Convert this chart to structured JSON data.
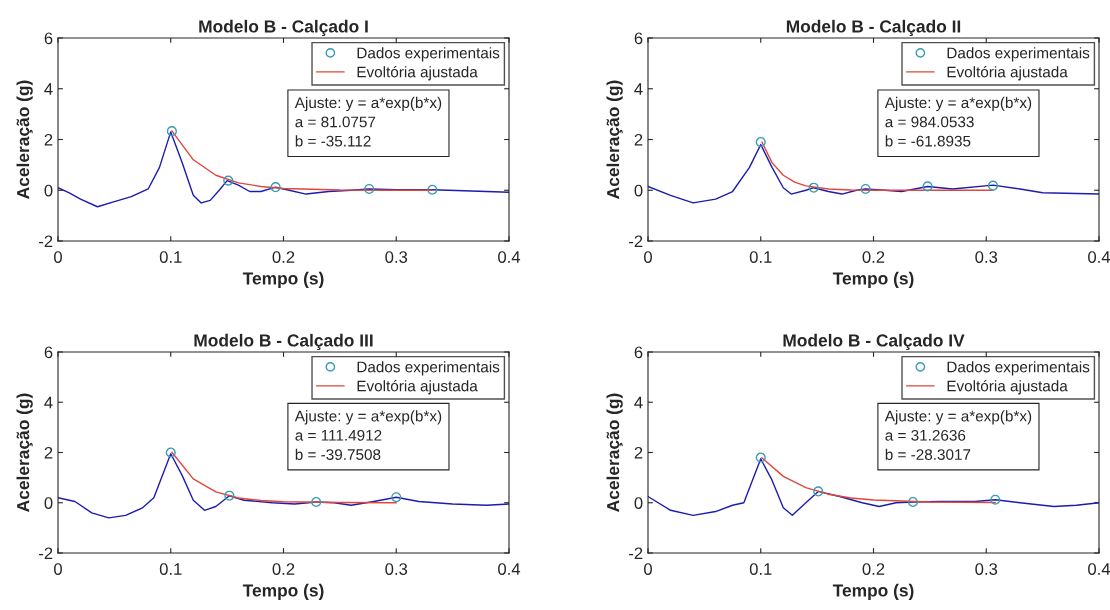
{
  "chart_data": [
    {
      "type": "line",
      "title": "Modelo B - Calçado I",
      "xlabel": "Tempo (s)",
      "ylabel": "Aceleração (g)",
      "xlim": [
        0,
        0.4
      ],
      "ylim": [
        -2,
        6
      ],
      "xticks": [
        0,
        0.1,
        0.2,
        0.3,
        0.4
      ],
      "yticks": [
        -2,
        0,
        2,
        4,
        6
      ],
      "grid": false,
      "legend": "top right",
      "annotations": [
        "Ajuste: y = a*exp(b*x)\na = 81.0757\nb = -35.112"
      ],
      "series": [
        {
          "color": "#1c1cb0",
          "line_style": "solid",
          "x": [
            0,
            0.01,
            0.02,
            0.035,
            0.05,
            0.065,
            0.08,
            0.09,
            0.1,
            0.11,
            0.12,
            0.127,
            0.135,
            0.143,
            0.15,
            0.16,
            0.17,
            0.18,
            0.193,
            0.205,
            0.22,
            0.24,
            0.26,
            0.276,
            0.3,
            0.332,
            0.36,
            0.4
          ],
          "values": [
            0.1,
            -0.1,
            -0.35,
            -0.65,
            -0.45,
            -0.25,
            0.05,
            0.9,
            2.3,
            1.1,
            -0.2,
            -0.5,
            -0.4,
            0,
            0.38,
            0.2,
            -0.05,
            -0.05,
            0.12,
            0,
            -0.15,
            -0.05,
            0,
            0.05,
            0.02,
            0.02,
            -0.02,
            -0.08
          ]
        },
        {
          "type": "scatter",
          "name": "Dados experimentais",
          "color": "#3a9bb5",
          "marker": "circle",
          "x": [
            0.101,
            0.151,
            0.193,
            0.276,
            0.332
          ],
          "values": [
            2.33,
            0.38,
            0.12,
            0.05,
            0.02
          ]
        },
        {
          "name": "Evoltória ajustada",
          "color": "#e0463a",
          "line_style": "solid",
          "x": [
            0.101,
            0.12,
            0.14,
            0.16,
            0.18,
            0.2,
            0.25,
            0.3,
            0.332
          ],
          "values": [
            2.34,
            1.2,
            0.59,
            0.29,
            0.15,
            0.07,
            0.01,
            0,
            0
          ]
        }
      ]
    },
    {
      "type": "line",
      "title": "Modelo B - Calçado II",
      "xlabel": "Tempo (s)",
      "ylabel": "Aceleração (g)",
      "xlim": [
        0,
        0.4
      ],
      "ylim": [
        -2,
        6
      ],
      "xticks": [
        0,
        0.1,
        0.2,
        0.3,
        0.4
      ],
      "yticks": [
        -2,
        0,
        2,
        4,
        6
      ],
      "grid": false,
      "legend": "top right",
      "annotations": [
        "Ajuste: y = a*exp(b*x)\na = 984.0533\nb = -61.8935"
      ],
      "series": [
        {
          "color": "#1c1cb0",
          "line_style": "solid",
          "x": [
            0,
            0.02,
            0.04,
            0.06,
            0.075,
            0.09,
            0.1,
            0.11,
            0.12,
            0.127,
            0.14,
            0.147,
            0.16,
            0.172,
            0.185,
            0.193,
            0.21,
            0.225,
            0.248,
            0.27,
            0.306,
            0.33,
            0.35,
            0.4
          ],
          "values": [
            0.15,
            -0.2,
            -0.5,
            -0.35,
            -0.05,
            0.9,
            1.8,
            0.9,
            0.1,
            -0.15,
            0,
            0.1,
            -0.05,
            -0.15,
            0,
            0.05,
            0,
            -0.05,
            0.15,
            0.05,
            0.2,
            0.05,
            -0.1,
            -0.15
          ]
        },
        {
          "type": "scatter",
          "name": "Dados experimentais",
          "color": "#3a9bb5",
          "marker": "circle",
          "x": [
            0.1,
            0.147,
            0.193,
            0.248,
            0.306
          ],
          "values": [
            1.9,
            0.1,
            0.05,
            0.15,
            0.18
          ]
        },
        {
          "name": "Evoltória ajustada",
          "color": "#e0463a",
          "line_style": "solid",
          "x": [
            0.101,
            0.11,
            0.12,
            0.13,
            0.14,
            0.16,
            0.18,
            0.2,
            0.25,
            0.306
          ],
          "values": [
            1.9,
            1.09,
            0.59,
            0.32,
            0.17,
            0.05,
            0.01,
            0,
            0,
            0
          ]
        }
      ]
    },
    {
      "type": "line",
      "title": "Modelo B - Calçado III",
      "xlabel": "Tempo (s)",
      "ylabel": "Aceleração (g)",
      "xlim": [
        0,
        0.4
      ],
      "ylim": [
        -2,
        6
      ],
      "xticks": [
        0,
        0.1,
        0.2,
        0.3,
        0.4
      ],
      "yticks": [
        -2,
        0,
        2,
        4,
        6
      ],
      "grid": false,
      "legend": "top right",
      "annotations": [
        "Ajuste: y = a*exp(b*x)\na = 111.4912\nb = -39.7508"
      ],
      "series": [
        {
          "color": "#1c1cb0",
          "line_style": "solid",
          "x": [
            0,
            0.015,
            0.03,
            0.045,
            0.06,
            0.075,
            0.085,
            0.1,
            0.11,
            0.12,
            0.13,
            0.14,
            0.152,
            0.165,
            0.19,
            0.21,
            0.229,
            0.245,
            0.26,
            0.28,
            0.3,
            0.32,
            0.35,
            0.38,
            0.4
          ],
          "values": [
            0.2,
            0.05,
            -0.4,
            -0.6,
            -0.5,
            -0.2,
            0.2,
            1.95,
            1.1,
            0.1,
            -0.3,
            -0.15,
            0.28,
            0.1,
            0,
            -0.05,
            0.03,
            0,
            -0.1,
            0.05,
            0.22,
            0.05,
            -0.05,
            -0.1,
            -0.05
          ]
        },
        {
          "type": "scatter",
          "name": "Dados experimentais",
          "color": "#3a9bb5",
          "marker": "circle",
          "x": [
            0.1,
            0.152,
            0.229,
            0.3
          ],
          "values": [
            2.0,
            0.28,
            0.03,
            0.22
          ]
        },
        {
          "name": "Evoltória ajustada",
          "color": "#e0463a",
          "line_style": "solid",
          "x": [
            0.101,
            0.12,
            0.14,
            0.16,
            0.18,
            0.2,
            0.25,
            0.3
          ],
          "values": [
            2.01,
            0.95,
            0.43,
            0.19,
            0.09,
            0.04,
            0.01,
            0
          ]
        }
      ]
    },
    {
      "type": "line",
      "title": "Modelo B - Calçado IV",
      "xlabel": "Tempo (s)",
      "ylabel": "Aceleração (g)",
      "xlim": [
        0,
        0.4
      ],
      "ylim": [
        -2,
        6
      ],
      "xticks": [
        0,
        0.1,
        0.2,
        0.3,
        0.4
      ],
      "yticks": [
        -2,
        0,
        2,
        4,
        6
      ],
      "grid": false,
      "legend": "top right",
      "annotations": [
        "Ajuste: y = a*exp(b*x)\na = 31.2636\nb = -28.3017"
      ],
      "series": [
        {
          "color": "#1c1cb0",
          "line_style": "solid",
          "x": [
            0,
            0.02,
            0.04,
            0.06,
            0.075,
            0.085,
            0.1,
            0.11,
            0.12,
            0.128,
            0.14,
            0.151,
            0.17,
            0.19,
            0.205,
            0.22,
            0.235,
            0.26,
            0.29,
            0.308,
            0.33,
            0.36,
            0.38,
            0.4
          ],
          "values": [
            0.25,
            -0.3,
            -0.5,
            -0.35,
            -0.1,
            0,
            1.75,
            0.9,
            -0.2,
            -0.5,
            0,
            0.45,
            0.25,
            0,
            -0.15,
            0,
            0.03,
            0.05,
            0.05,
            0.12,
            0,
            -0.15,
            -0.1,
            0
          ]
        },
        {
          "type": "scatter",
          "name": "Dados experimentais",
          "color": "#3a9bb5",
          "marker": "circle",
          "x": [
            0.1,
            0.151,
            0.235,
            0.308
          ],
          "values": [
            1.8,
            0.45,
            0.03,
            0.12
          ]
        },
        {
          "name": "Evoltória ajustada",
          "color": "#e0463a",
          "line_style": "solid",
          "x": [
            0.101,
            0.12,
            0.14,
            0.16,
            0.18,
            0.2,
            0.25,
            0.308
          ],
          "values": [
            1.79,
            1.05,
            0.6,
            0.34,
            0.19,
            0.11,
            0.03,
            0.01
          ]
        }
      ]
    }
  ]
}
